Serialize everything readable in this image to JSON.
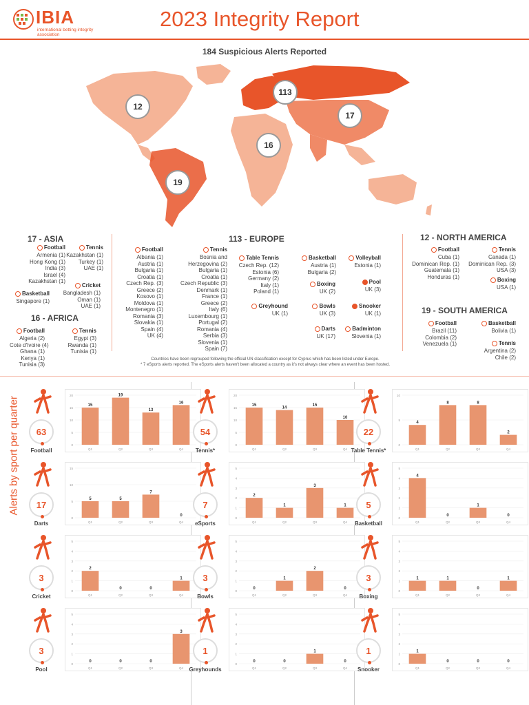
{
  "header": {
    "logo_text": "IBIA",
    "logo_sub": "international betting integrity association",
    "title": "2023 Integrity Report"
  },
  "map": {
    "title": "184 Suspicious Alerts Reported",
    "bubbles": {
      "north_america": "12",
      "europe": "113",
      "asia": "17",
      "africa": "16",
      "south_america": "19"
    }
  },
  "regions": {
    "asia": {
      "heading": "17 - ASIA",
      "blocks": [
        {
          "label": "Football",
          "icon": "football-icon",
          "lines": [
            "Armenia (1)",
            "Hong Kong (1)",
            "India (3)",
            "Israel (4)",
            "Kazakhstan (1)"
          ]
        },
        {
          "label": "Tennis",
          "icon": "tennis-icon",
          "lines": [
            "Kazakhstan (1)",
            "Turkey (1)",
            "UAE (1)"
          ]
        },
        {
          "label": "Basketball",
          "icon": "basketball-icon",
          "lines": [
            "Singapore (1)"
          ]
        },
        {
          "label": "Cricket",
          "icon": "cricket-icon",
          "lines": [
            "Bangladesh (1)",
            "Oman (1)",
            "UAE (1)"
          ]
        }
      ]
    },
    "africa": {
      "heading": "16 - AFRICA",
      "blocks": [
        {
          "label": "Football",
          "icon": "football-icon",
          "lines": [
            "Algeria (2)",
            "Cote d'Ivoire (4)",
            "Ghana (1)",
            "Kenya (1)",
            "Tunisia (3)"
          ]
        },
        {
          "label": "Tennis",
          "icon": "tennis-icon",
          "lines": [
            "Egypt (3)",
            "Rwanda (1)",
            "Tunisia (1)"
          ]
        }
      ]
    },
    "europe": {
      "heading": "113 - EUROPE",
      "blocks": [
        {
          "label": "Football",
          "icon": "football-icon",
          "lines": [
            "Albania (1)",
            "Austria (1)",
            "Bulgaria (1)",
            "Croatia (1)",
            "Czech Rep. (3)",
            "Greece (2)",
            "Kosovo (1)",
            "Moldova (1)",
            "Montenegro (1)",
            "Romania (3)",
            "Slovakia (1)",
            "Spain (4)",
            "UK (4)"
          ]
        },
        {
          "label": "Tennis",
          "icon": "tennis-icon",
          "lines": [
            "Bosnia and",
            "Herzegovina (2)",
            "Bulgaria (1)",
            "Croatia (1)",
            "Czech Republic (3)",
            "Denmark (1)",
            "France (1)",
            "Greece (2)",
            "Italy (6)",
            "Luxembourg (1)",
            "Portugal (2)",
            "Romania (4)",
            "Serbia (3)",
            "Slovenia (1)",
            "Spain (7)"
          ]
        },
        {
          "label": "Table Tennis",
          "icon": "table-tennis-icon",
          "lines": [
            "Czech Rep. (12)",
            "Estonia (6)",
            "Germany (2)",
            "Italy (1)",
            "Poland (1)"
          ]
        },
        {
          "label": "Greyhound",
          "icon": "greyhound-icon",
          "lines": [
            "UK (1)"
          ]
        },
        {
          "label": "Basketball",
          "icon": "basketball-icon",
          "lines": [
            "Austria (1)",
            "Bulgaria (2)"
          ]
        },
        {
          "label": "Boxing",
          "icon": "boxing-icon",
          "lines": [
            "UK (2)"
          ]
        },
        {
          "label": "Bowls",
          "icon": "bowls-icon",
          "lines": [
            "UK (3)"
          ]
        },
        {
          "label": "Darts",
          "icon": "darts-icon",
          "lines": [
            "UK (17)"
          ]
        },
        {
          "label": "Volleyball",
          "icon": "volleyball-icon",
          "lines": [
            "Estonia (1)"
          ]
        },
        {
          "label": "Pool",
          "icon": "pool-icon",
          "lines": [
            "UK (3)"
          ]
        },
        {
          "label": "Snooker",
          "icon": "snooker-icon",
          "lines": [
            "UK (1)"
          ]
        },
        {
          "label": "Badminton",
          "icon": "badminton-icon",
          "lines": [
            "Slovenia (1)"
          ]
        }
      ]
    },
    "north_america": {
      "heading": "12 - NORTH AMERICA",
      "blocks": [
        {
          "label": "Football",
          "icon": "football-icon",
          "lines": [
            "Cuba (1)",
            "Dominican Rep. (1)",
            "Guatemala (1)",
            "Honduras (1)"
          ]
        },
        {
          "label": "Tennis",
          "icon": "tennis-icon",
          "lines": [
            "Canada (1)",
            "Dominican Rep. (3)",
            "USA (3)"
          ]
        },
        {
          "label": "Boxing",
          "icon": "boxing-icon",
          "lines": [
            "USA (1)"
          ]
        }
      ]
    },
    "south_america": {
      "heading": "19 - SOUTH AMERICA",
      "blocks": [
        {
          "label": "Football",
          "icon": "football-icon",
          "lines": [
            "Brazil (11)",
            "Colombia (2)",
            "Venezuela (1)"
          ]
        },
        {
          "label": "Basketball",
          "icon": "basketball-icon",
          "lines": [
            "Bolivia (1)"
          ]
        },
        {
          "label": "Tennis",
          "icon": "tennis-icon",
          "lines": [
            "Argentina (2)",
            "Chile (2)"
          ]
        }
      ]
    }
  },
  "notes": {
    "line1": "Countries have been regrouped following the official UN classification except for Cyprus which has been listed under Europe.",
    "line2": "* 7 eSports alerts reported. The eSports alerts haven't been allocated a country as it's not always clear where an event has been hosted."
  },
  "section": {
    "vertical_label": "Alerts by sport per quarter"
  },
  "colors": {
    "accent": "#e8552a",
    "bar": "#e8956f",
    "map_dark": "#e8552a",
    "map_mid": "#f08a67",
    "map_light": "#f5b497"
  },
  "chart_data": [
    {
      "type": "bar",
      "name": "Football",
      "total": "63",
      "categories": [
        "Q1",
        "Q2",
        "Q3",
        "Q4"
      ],
      "values": [
        15,
        19,
        13,
        16
      ],
      "ylim": [
        0,
        20
      ],
      "yticks": [
        "0",
        "5",
        "10",
        "15",
        "20"
      ]
    },
    {
      "type": "bar",
      "name": "Tennis*",
      "total": "54",
      "categories": [
        "Q1",
        "Q2",
        "Q3",
        "Q4"
      ],
      "values": [
        15,
        14,
        15,
        10
      ],
      "ylim": [
        0,
        20
      ],
      "yticks": [
        "0",
        "5",
        "10",
        "15",
        "20"
      ]
    },
    {
      "type": "bar",
      "name": "Table Tennis*",
      "total": "22",
      "categories": [
        "Q1",
        "Q2",
        "Q3",
        "Q4"
      ],
      "values": [
        4,
        8,
        8,
        2
      ],
      "ylim": [
        0,
        10
      ],
      "yticks": [
        "0",
        "5",
        "10"
      ]
    },
    {
      "type": "bar",
      "name": "Darts",
      "total": "17",
      "categories": [
        "Q1",
        "Q2",
        "Q3",
        "Q4"
      ],
      "values": [
        5,
        5,
        7,
        0
      ],
      "ylim": [
        0,
        15
      ],
      "yticks": [
        "0",
        "5",
        "10",
        "15"
      ]
    },
    {
      "type": "bar",
      "name": "eSports",
      "total": "7",
      "categories": [
        "Q1",
        "Q2",
        "Q3",
        "Q4"
      ],
      "values": [
        2,
        1,
        3,
        1
      ],
      "ylim": [
        0,
        5
      ],
      "yticks": [
        "0",
        "1",
        "2",
        "3",
        "4",
        "5"
      ]
    },
    {
      "type": "bar",
      "name": "Basketball",
      "total": "5",
      "categories": [
        "Q1",
        "Q2",
        "Q3",
        "Q4"
      ],
      "values": [
        4,
        0,
        1,
        0
      ],
      "ylim": [
        0,
        5
      ],
      "yticks": [
        "0",
        "1",
        "2",
        "3",
        "4",
        "5"
      ]
    },
    {
      "type": "bar",
      "name": "Cricket",
      "total": "3",
      "categories": [
        "Q1",
        "Q2",
        "Q3",
        "Q4"
      ],
      "values": [
        2,
        0,
        0,
        1
      ],
      "ylim": [
        0,
        5
      ],
      "yticks": [
        "0",
        "1",
        "2",
        "3",
        "4",
        "5"
      ]
    },
    {
      "type": "bar",
      "name": "Bowls",
      "total": "3",
      "categories": [
        "Q1",
        "Q2",
        "Q3",
        "Q4"
      ],
      "values": [
        0,
        1,
        2,
        0
      ],
      "ylim": [
        0,
        5
      ],
      "yticks": [
        "0",
        "1",
        "2",
        "3",
        "4",
        "5"
      ]
    },
    {
      "type": "bar",
      "name": "Boxing",
      "total": "3",
      "categories": [
        "Q1",
        "Q2",
        "Q3",
        "Q4"
      ],
      "values": [
        1,
        1,
        0,
        1
      ],
      "ylim": [
        0,
        5
      ],
      "yticks": [
        "0",
        "1",
        "2",
        "3",
        "4",
        "5"
      ]
    },
    {
      "type": "bar",
      "name": "Pool",
      "total": "3",
      "categories": [
        "Q1",
        "Q2",
        "Q3",
        "Q4"
      ],
      "values": [
        0,
        0,
        0,
        3
      ],
      "ylim": [
        0,
        5
      ],
      "yticks": [
        "0",
        "1",
        "2",
        "3",
        "4",
        "5"
      ]
    },
    {
      "type": "bar",
      "name": "Greyhounds",
      "total": "1",
      "categories": [
        "Q1",
        "Q2",
        "Q3",
        "Q4"
      ],
      "values": [
        0,
        0,
        1,
        0
      ],
      "ylim": [
        0,
        5
      ],
      "yticks": [
        "0",
        "1",
        "2",
        "3",
        "4",
        "5"
      ]
    },
    {
      "type": "bar",
      "name": "Snooker",
      "total": "1",
      "categories": [
        "Q1",
        "Q2",
        "Q3",
        "Q4"
      ],
      "values": [
        1,
        0,
        0,
        0
      ],
      "ylim": [
        0,
        5
      ],
      "yticks": [
        "0",
        "1",
        "2",
        "3",
        "4",
        "5"
      ]
    }
  ]
}
